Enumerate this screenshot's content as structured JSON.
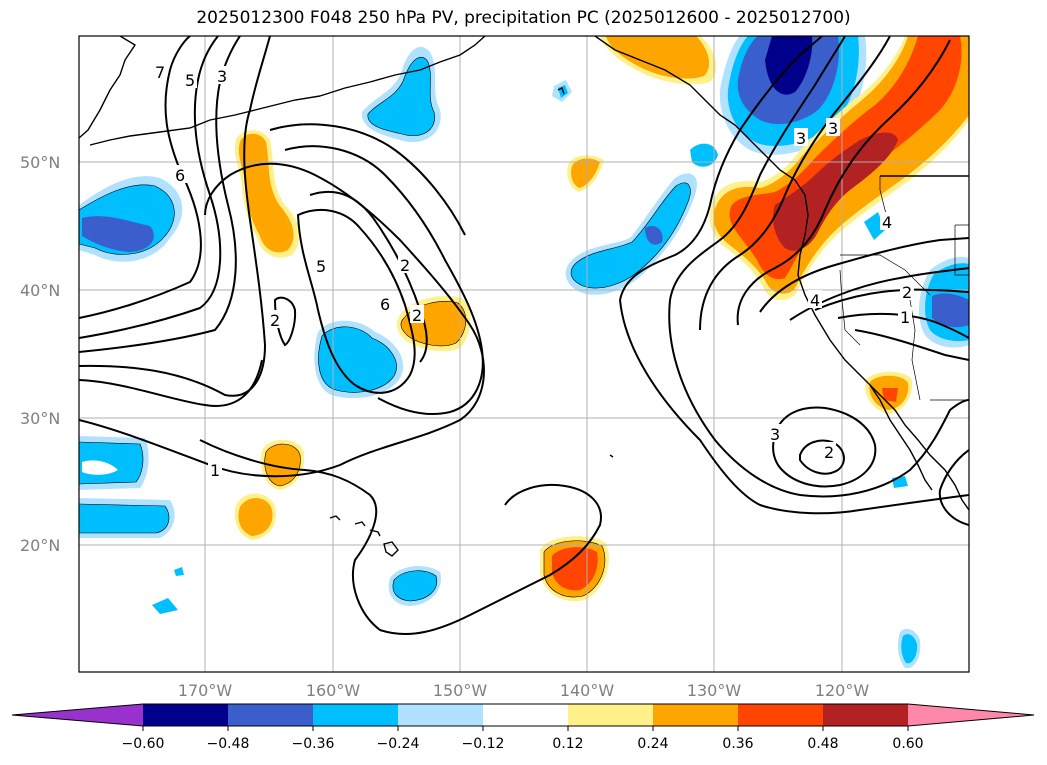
{
  "title": "2025012300 F048 250 hPa PV, precipitation PC (2025012600 - 2025012700)",
  "lat_labels": [
    "50°N",
    "40°N",
    "30°N",
    "20°N"
  ],
  "lon_labels": [
    "170°W",
    "160°W",
    "150°W",
    "140°W",
    "130°W",
    "120°W"
  ],
  "colorbar": {
    "ticks": [
      "−0.60",
      "−0.48",
      "−0.36",
      "−0.24",
      "−0.12",
      "0.12",
      "0.24",
      "0.36",
      "0.48",
      "0.60"
    ],
    "colors": [
      "#9932cc",
      "#00008b",
      "#3a5fcd",
      "#00bfff",
      "#b0e2ff",
      "#ffffff",
      "#fff08a",
      "#ffa500",
      "#ff4500",
      "#b22222",
      "#ff88aa"
    ]
  },
  "contour_labels": [
    "7",
    "5",
    "3",
    "6",
    "5",
    "2",
    "6",
    "2",
    "2",
    "1",
    "3",
    "3",
    "4",
    "2",
    "1",
    "3",
    "2",
    "4"
  ]
}
